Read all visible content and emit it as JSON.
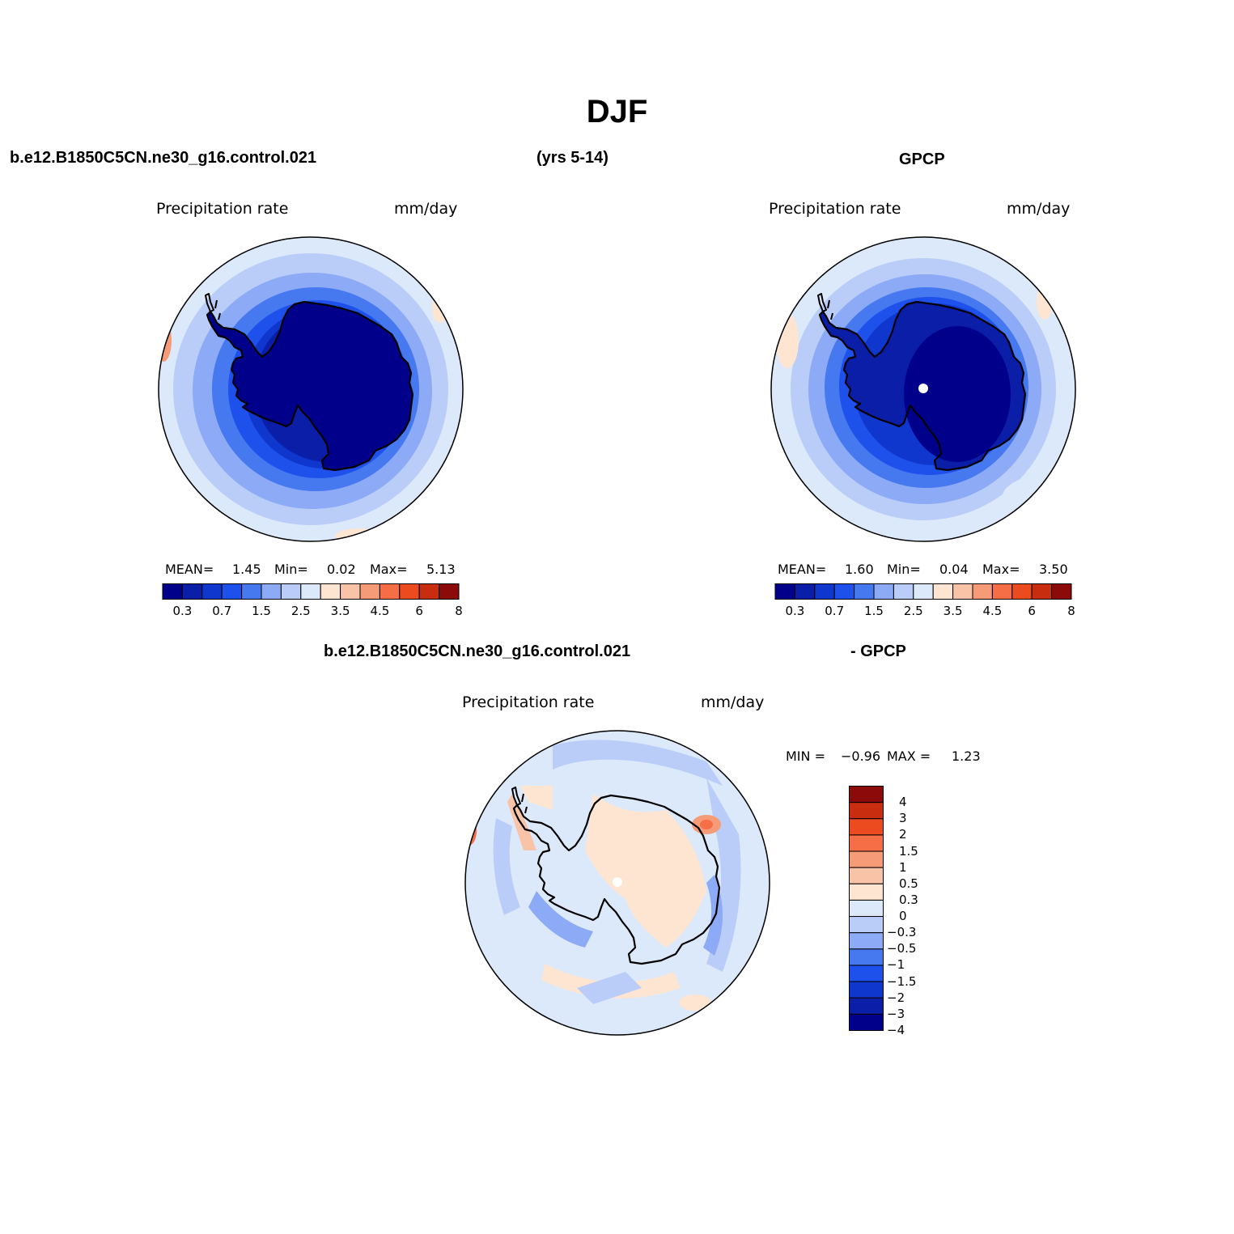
{
  "page": {
    "title": "DJF",
    "case_name": "b.e12.B1850C5CN.ne30_g16.control.021",
    "years": "(yrs 5-14)",
    "obs_name": "GPCP",
    "diff_case": "b.e12.B1850C5CN.ne30_g16.control.021",
    "diff_obs": "- GPCP"
  },
  "colors": {
    "abs_scale": [
      "#00008b",
      "#0a1ea8",
      "#0f37cd",
      "#1e50eb",
      "#4678f0",
      "#8caaf5",
      "#b9cdf8",
      "#dce9fb",
      "#fde5d2",
      "#f9c3a8",
      "#f59b78",
      "#f56e46",
      "#eb4b1e",
      "#c82d0f",
      "#8c0a0a"
    ],
    "diff_scale": [
      "#00008b",
      "#0a1ea8",
      "#0f37cd",
      "#1e50eb",
      "#4678f0",
      "#8caaf5",
      "#b9cdf8",
      "#dce9fb",
      "#fde5d2",
      "#f9c3a8",
      "#f59b78",
      "#f56e46",
      "#eb4b1e",
      "#c82d0f",
      "#8c0a0a"
    ]
  },
  "icons": {
    "coastline": "antarctica-coastline-icon",
    "pole": "south-pole-marker-icon"
  },
  "panels": [
    {
      "id": "model",
      "field_label": "Precipitation rate",
      "units": "mm/day",
      "stats": {
        "mean_label": "MEAN=",
        "mean": "1.45",
        "min_label": "Min=",
        "min": "0.02",
        "max_label": "Max=",
        "max": "5.13"
      },
      "colorbar_ticks": [
        "0.3",
        "0.7",
        "1.5",
        "2.5",
        "3.5",
        "4.5",
        "6",
        "8"
      ]
    },
    {
      "id": "obs",
      "field_label": "Precipitation rate",
      "units": "mm/day",
      "stats": {
        "mean_label": "MEAN=",
        "mean": "1.60",
        "min_label": "Min=",
        "min": "0.04",
        "max_label": "Max=",
        "max": "3.50"
      },
      "colorbar_ticks": [
        "0.3",
        "0.7",
        "1.5",
        "2.5",
        "3.5",
        "4.5",
        "6",
        "8"
      ]
    },
    {
      "id": "diff",
      "field_label": "Precipitation rate",
      "units": "mm/day",
      "stats": {
        "min_label": "MIN =",
        "min": "−0.96",
        "max_label": "MAX =",
        "max": "1.23"
      },
      "colorbar_ticks": [
        "4",
        "3",
        "2",
        "1.5",
        "1",
        "0.5",
        "0.3",
        "0",
        "−0.3",
        "−0.5",
        "−1",
        "−1.5",
        "−2",
        "−3",
        "−4"
      ]
    }
  ]
}
